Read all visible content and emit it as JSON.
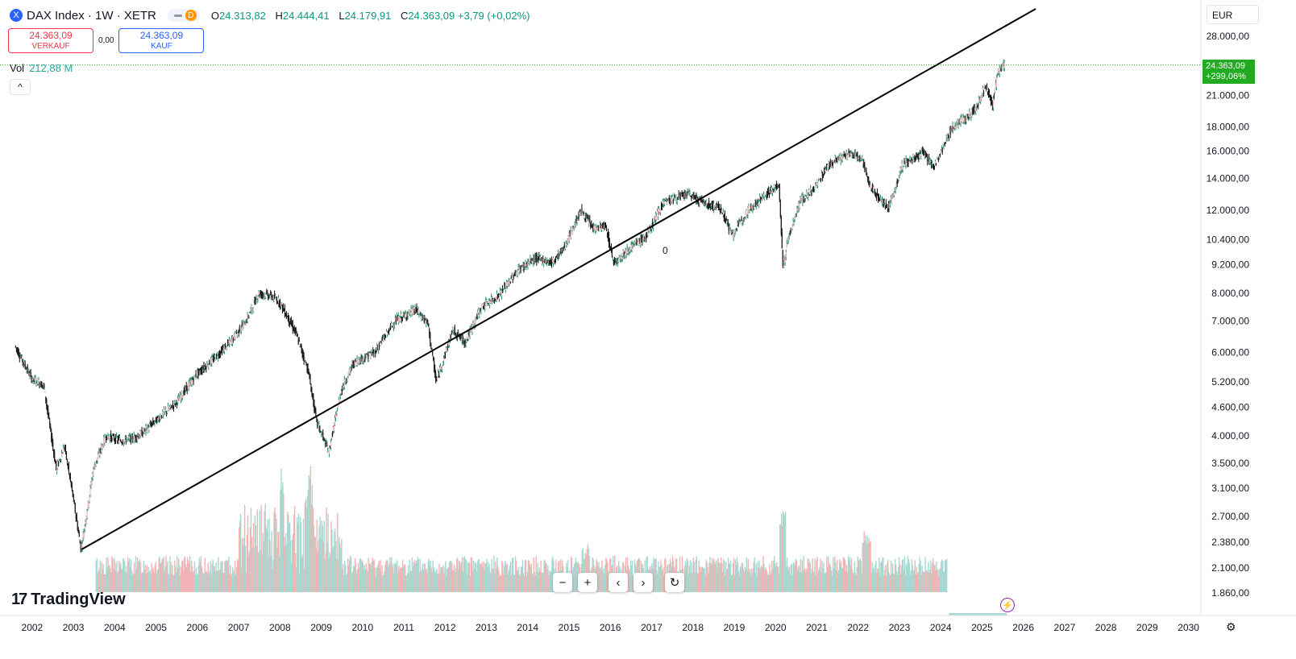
{
  "header": {
    "symbol_icon": "X",
    "title": "DAX Index · 1W · XETR",
    "pill_badge": "D",
    "ohlc": [
      {
        "k": "O",
        "v": "24.313,82"
      },
      {
        "k": "H",
        "v": "24.444,41"
      },
      {
        "k": "L",
        "v": "24.179,91"
      },
      {
        "k": "C",
        "v": "24.363,09 +3,79 (+0,02%)"
      }
    ]
  },
  "trade": {
    "sell_price": "24.363,09",
    "sell_label": "VERKAUF",
    "spread": "0,00",
    "buy_price": "24.363,09",
    "buy_label": "KAUF"
  },
  "volume": {
    "label": "Vol",
    "value": "212,88 M"
  },
  "collapse_icon": "^",
  "currency": "EUR",
  "last_price": {
    "price": "24.363,09",
    "change": "+299,06%"
  },
  "logo": {
    "mark": "17",
    "text": "TradingView"
  },
  "nav": {
    "minus": "−",
    "plus": "+",
    "left": "‹",
    "right": "›",
    "reset": "↻"
  },
  "annotation": "0",
  "colors": {
    "up": "#089981",
    "down": "#f23645",
    "vol_up": "#a7d8d1",
    "vol_down": "#f3b3b3",
    "last": "#22ab22"
  },
  "chart_data": {
    "type": "line",
    "scale": "log",
    "x": [
      2001.6,
      2002.0,
      2002.3,
      2002.6,
      2002.8,
      2003.0,
      2003.2,
      2003.5,
      2003.8,
      2004.2,
      2004.6,
      2005.0,
      2005.5,
      2006.0,
      2006.4,
      2006.8,
      2007.2,
      2007.5,
      2007.8,
      2008.0,
      2008.4,
      2008.7,
      2008.9,
      2009.2,
      2009.5,
      2009.8,
      2010.3,
      2010.8,
      2011.3,
      2011.6,
      2011.8,
      2012.2,
      2012.5,
      2012.9,
      2013.3,
      2013.8,
      2014.2,
      2014.6,
      2014.9,
      2015.3,
      2015.6,
      2015.9,
      2016.1,
      2016.5,
      2016.9,
      2017.3,
      2017.9,
      2018.3,
      2018.7,
      2018.97,
      2019.3,
      2019.8,
      2020.1,
      2020.2,
      2020.3,
      2020.6,
      2020.95,
      2021.3,
      2021.8,
      2022.1,
      2022.3,
      2022.75,
      2023.1,
      2023.6,
      2023.85,
      2024.3,
      2024.7,
      2024.9,
      2025.1,
      2025.27,
      2025.4,
      2025.55
    ],
    "y": [
      6200,
      5300,
      5100,
      3400,
      3800,
      3000,
      2300,
      3400,
      4000,
      3900,
      4000,
      4300,
      4700,
      5400,
      5800,
      6300,
      7000,
      8000,
      7900,
      7700,
      6600,
      5500,
      4300,
      3700,
      5000,
      5700,
      6000,
      7000,
      7400,
      6900,
      5200,
      6700,
      6300,
      7500,
      7900,
      9000,
      9500,
      9300,
      10000,
      12000,
      11000,
      11100,
      9300,
      10000,
      10600,
      12500,
      13000,
      12400,
      12100,
      10600,
      11900,
      13000,
      13600,
      9000,
      10300,
      12500,
      13300,
      15000,
      15800,
      15500,
      13500,
      12100,
      15000,
      15900,
      14800,
      18000,
      19000,
      20000,
      22000,
      20000,
      23500,
      24363
    ],
    "volume_values_M": "relative weekly bars shown (red = down week, teal = up week)",
    "trendline": {
      "x": [
        2003.2,
        2026.3
      ],
      "y": [
        2300,
        32000
      ]
    },
    "x_ticks": [
      "2002",
      "2003",
      "2004",
      "2005",
      "2006",
      "2007",
      "2008",
      "2009",
      "2010",
      "2011",
      "2012",
      "2013",
      "2014",
      "2015",
      "2016",
      "2017",
      "2018",
      "2019",
      "2020",
      "2021",
      "2022",
      "2023",
      "2024",
      "2025",
      "2026",
      "2027",
      "2028",
      "2029",
      "2030"
    ],
    "y_ticks": [
      "28.000,00",
      "21.000,00",
      "18.000,00",
      "16.000,00",
      "14.000,00",
      "12.000,00",
      "10.400,00",
      "9.200,00",
      "8.000,00",
      "7.000,00",
      "6.000,00",
      "5.200,00",
      "4.600,00",
      "4.000,00",
      "3.500,00",
      "3.100,00",
      "2.700,00",
      "2.380,00",
      "2.100,00",
      "1.860,00"
    ],
    "y_tick_values": [
      28000,
      21000,
      18000,
      16000,
      14000,
      12000,
      10400,
      9200,
      8000,
      7000,
      6000,
      5200,
      4600,
      4000,
      3500,
      3100,
      2700,
      2380,
      2100,
      1860
    ],
    "xlim": [
      2001.3,
      2030.3
    ],
    "last": 24363.09,
    "grid": false
  }
}
